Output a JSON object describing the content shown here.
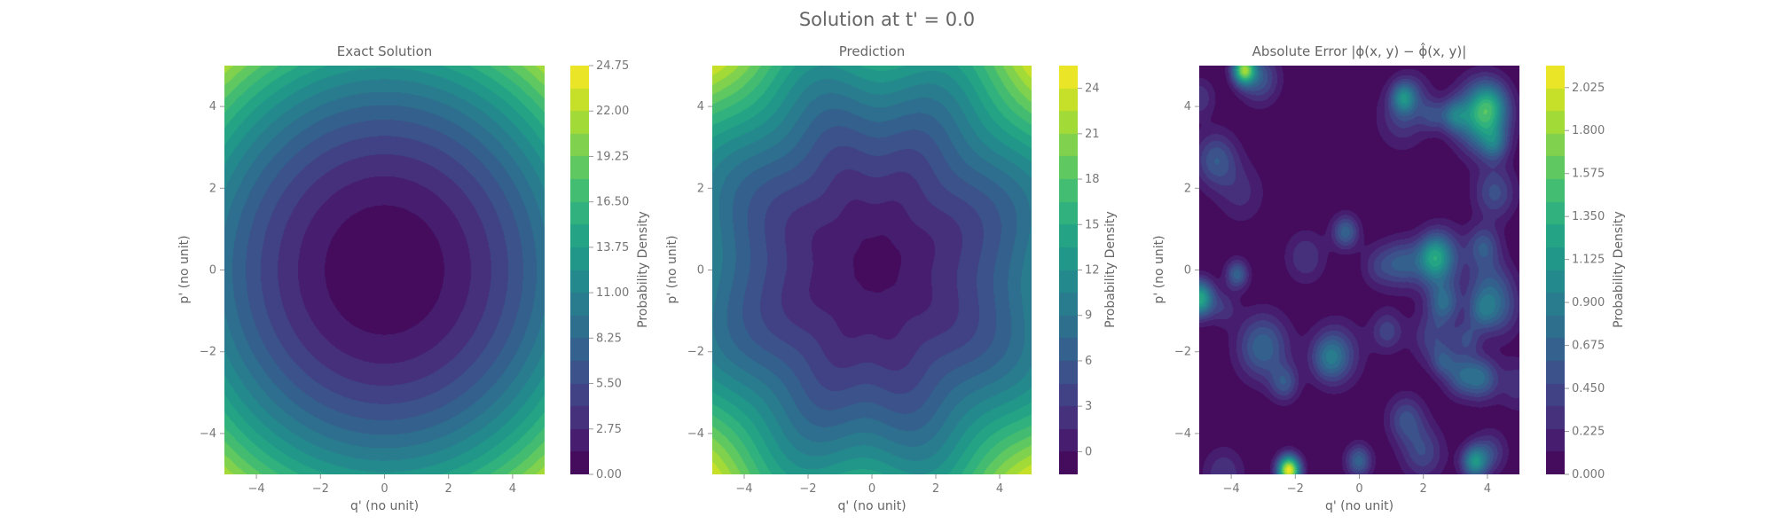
{
  "suptitle": "Solution at t' = 0.0",
  "colormap": "viridis",
  "chart_data": [
    {
      "type": "heatmap",
      "title": "Exact Solution",
      "xlabel": "q' (no unit)",
      "ylabel": "p' (no unit)",
      "xlim": [
        -5,
        5
      ],
      "ylim": [
        -5,
        5
      ],
      "xticks": [
        -4,
        -2,
        0,
        2,
        4
      ],
      "yticks": [
        -4,
        -2,
        0,
        2,
        4
      ],
      "xtick_labels": [
        "−4",
        "−2",
        "0",
        "2",
        "4"
      ],
      "ytick_labels": [
        "−4",
        "−2",
        "0",
        "2",
        "4"
      ],
      "levels": 18,
      "colorbar": {
        "label": "Probability Density",
        "range": [
          0,
          24.75
        ],
        "ticks": [
          0,
          2.75,
          5.5,
          8.25,
          11.0,
          13.75,
          16.5,
          19.25,
          22.0,
          24.75
        ],
        "tick_labels": [
          "0.00",
          "2.75",
          "5.50",
          "8.25",
          "11.00",
          "13.75",
          "16.50",
          "19.25",
          "22.00",
          "24.75"
        ]
      }
    },
    {
      "type": "heatmap",
      "title": "Prediction",
      "xlabel": "q' (no unit)",
      "ylabel": "p' (no unit)",
      "xlim": [
        -5,
        5
      ],
      "ylim": [
        -5,
        5
      ],
      "xticks": [
        -4,
        -2,
        0,
        2,
        4
      ],
      "yticks": [
        -4,
        -2,
        0,
        2,
        4
      ],
      "xtick_labels": [
        "−4",
        "−2",
        "0",
        "2",
        "4"
      ],
      "ytick_labels": [
        "−4",
        "−2",
        "0",
        "2",
        "4"
      ],
      "levels": 18,
      "colorbar": {
        "label": "Probability Density",
        "range": [
          -1.5,
          25.5
        ],
        "ticks": [
          0,
          3,
          6,
          9,
          12,
          15,
          18,
          21,
          24
        ],
        "tick_labels": [
          "0",
          "3",
          "6",
          "9",
          "12",
          "15",
          "18",
          "21",
          "24"
        ]
      }
    },
    {
      "type": "heatmap",
      "title": "Absolute Error |ϕ(x, y) − ϕ̂(x, y)|",
      "xlabel": "q' (no unit)",
      "ylabel": "p' (no unit)",
      "xlim": [
        -5,
        5
      ],
      "ylim": [
        -5,
        5
      ],
      "xticks": [
        -4,
        -2,
        0,
        2,
        4
      ],
      "yticks": [
        -4,
        -2,
        0,
        2,
        4
      ],
      "xtick_labels": [
        "−4",
        "−2",
        "0",
        "2",
        "4"
      ],
      "ytick_labels": [
        "−4",
        "−2",
        "0",
        "2",
        "4"
      ],
      "levels": 18,
      "colorbar": {
        "label": "Probability Density",
        "range": [
          0,
          2.14
        ],
        "ticks": [
          0,
          0.225,
          0.45,
          0.675,
          0.9,
          1.125,
          1.35,
          1.575,
          1.8,
          2.025
        ],
        "tick_labels": [
          "0.000",
          "0.225",
          "0.450",
          "0.675",
          "0.900",
          "1.125",
          "1.350",
          "1.575",
          "1.800",
          "2.025"
        ]
      }
    }
  ]
}
